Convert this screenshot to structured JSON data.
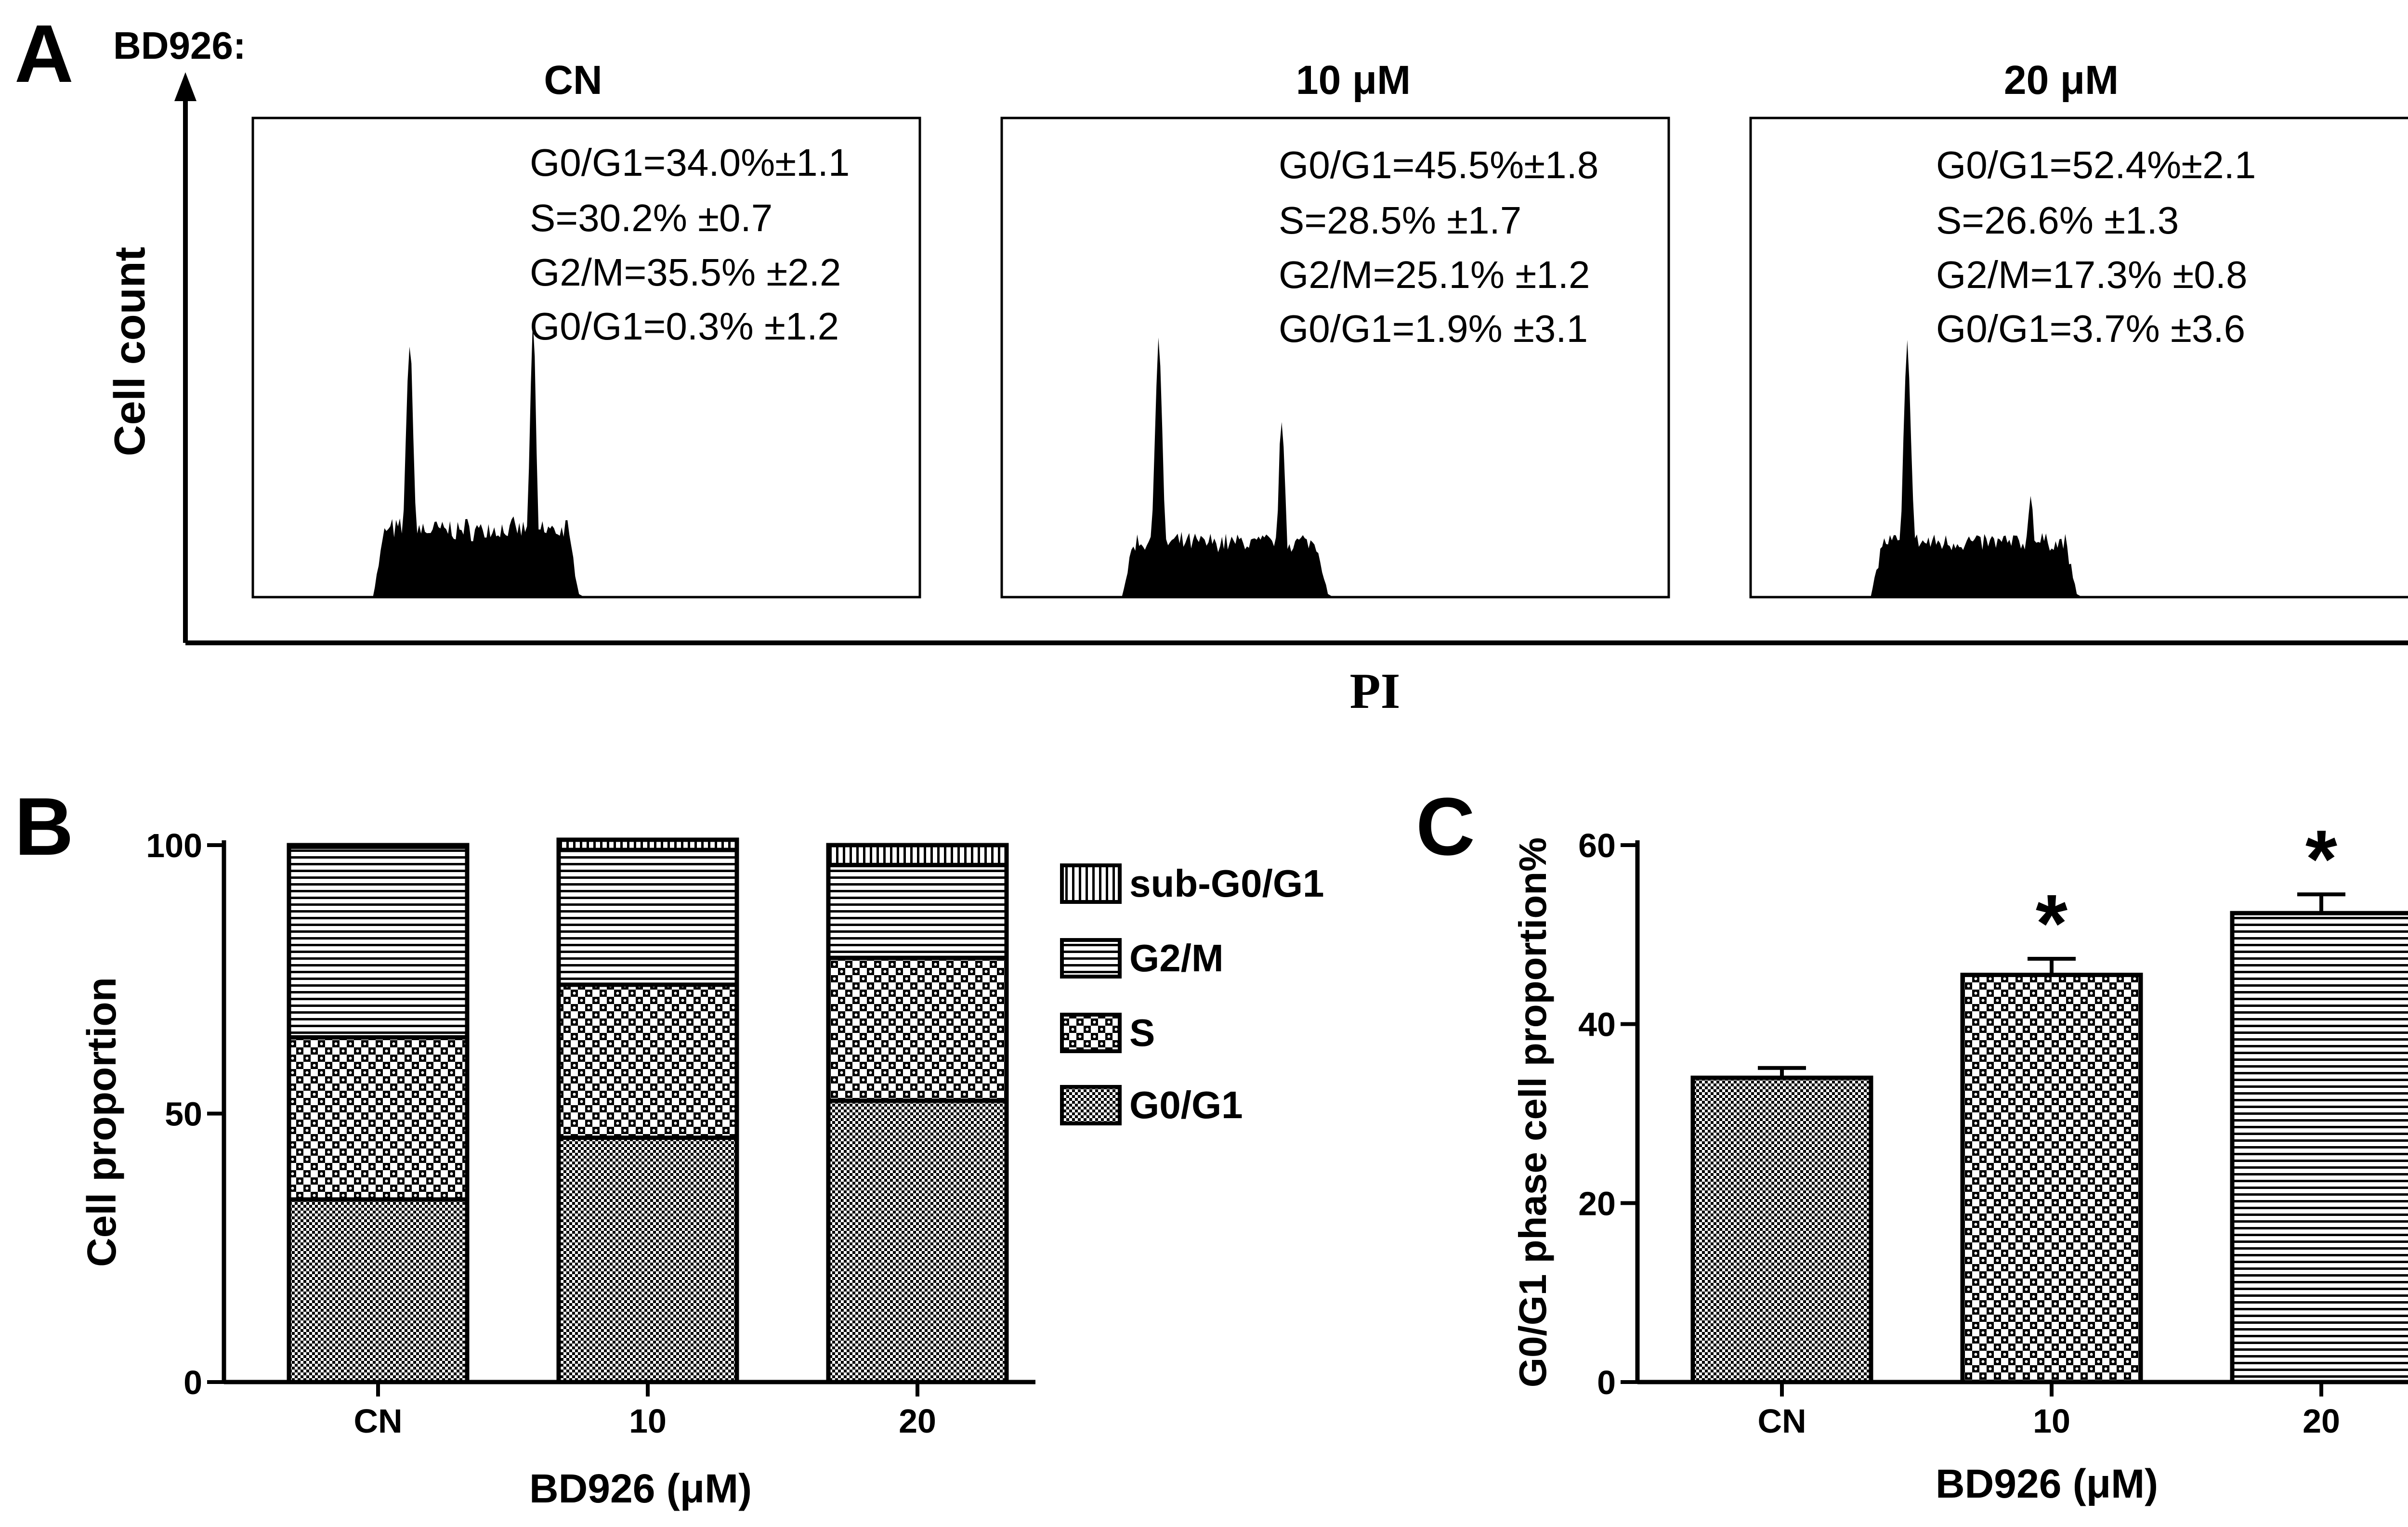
{
  "panel_a": {
    "letter": "A",
    "compound_label": "BD926:",
    "y_axis_label": "Cell count",
    "x_axis_label": "PI",
    "panels": [
      {
        "title": "CN",
        "lines": [
          "G0/G1=34.0%±1.1",
          "S=30.2% ±0.7",
          "G2/M=35.5% ±2.2",
          "G0/G1=0.3% ±1.2"
        ]
      },
      {
        "title": "10 μM",
        "lines": [
          "G0/G1=45.5%±1.8",
          "S=28.5% ±1.7",
          "G2/M=25.1% ±1.2",
          "G0/G1=1.9% ±3.1"
        ]
      },
      {
        "title": "20 μM",
        "lines": [
          "G0/G1=52.4%±2.1",
          "S=26.6% ±1.3",
          "G2/M=17.3% ±0.8",
          "G0/G1=3.7% ±3.6"
        ]
      }
    ]
  },
  "panel_b": {
    "letter": "B"
  },
  "panel_c": {
    "letter": "C"
  },
  "chart_data": [
    {
      "type": "area",
      "panel": "A",
      "description_of_series": "flow cytometry DNA histograms",
      "xlabel": "PI",
      "ylabel": "Cell count",
      "series": [
        {
          "name": "CN",
          "g1_peak": 1.0,
          "g2_peak": 1.06,
          "s_level": 0.27
        },
        {
          "name": "10 μM",
          "g1_peak": 1.0,
          "g2_peak": 0.72,
          "s_level": 0.22
        },
        {
          "name": "20 μM",
          "g1_peak": 1.0,
          "g2_peak": 0.41,
          "s_level": 0.22
        }
      ]
    },
    {
      "type": "bar",
      "panel": "B",
      "stacked": true,
      "categories": [
        "CN",
        "10",
        "20"
      ],
      "series": [
        {
          "name": "G0/G1",
          "values": [
            34.0,
            45.5,
            52.4
          ]
        },
        {
          "name": "S",
          "values": [
            30.2,
            28.5,
            26.6
          ]
        },
        {
          "name": "G2/M",
          "values": [
            35.5,
            25.1,
            17.3
          ]
        },
        {
          "name": "sub-G0/G1",
          "values": [
            0.3,
            1.9,
            3.7
          ]
        }
      ],
      "legend_order": [
        "sub-G0/G1",
        "G2/M",
        "S",
        "G0/G1"
      ],
      "xlabel": "BD926 (μM)",
      "ylabel": "Cell proportion",
      "ylim": [
        0,
        100
      ],
      "yticks": [
        0,
        50,
        100
      ],
      "legend_position": "right"
    },
    {
      "type": "bar",
      "panel": "C",
      "categories": [
        "CN",
        "10",
        "20"
      ],
      "values": [
        34.0,
        45.5,
        52.4
      ],
      "errors": [
        1.1,
        1.8,
        2.1
      ],
      "significance": [
        "",
        "*",
        "*"
      ],
      "xlabel": "BD926 (μM)",
      "ylabel": "G0/G1 phase cell proportion%",
      "ylim": [
        0,
        60
      ],
      "yticks": [
        0,
        20,
        40,
        60
      ]
    }
  ]
}
